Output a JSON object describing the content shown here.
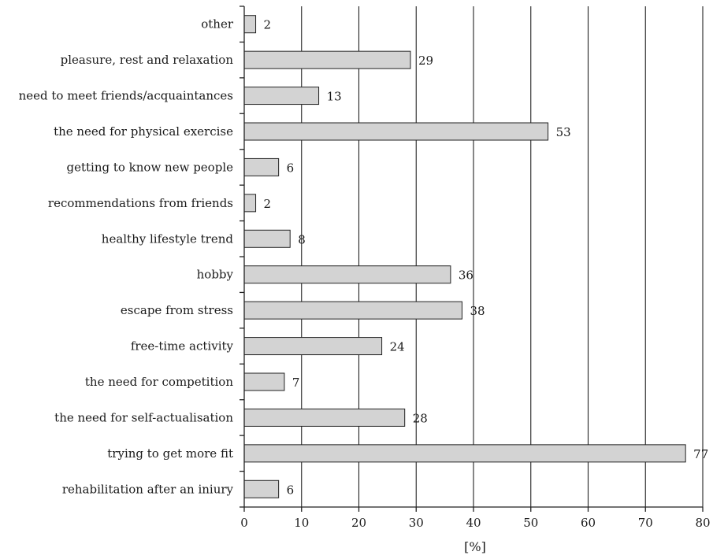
{
  "chart_data": {
    "type": "bar",
    "orientation": "horizontal",
    "categories": [
      "other",
      "pleasure, rest and relaxation",
      "need to meet friends/acquaintances",
      "the need for physical exercise",
      "getting to know new people",
      "recommendations from friends",
      "healthy lifestyle trend",
      "hobby",
      "escape from stress",
      "free-time activity",
      "the need for competition",
      "the need for self-actualisation",
      "trying to get more fit",
      "rehabilitation after an iniury"
    ],
    "values": [
      2,
      29,
      13,
      53,
      6,
      2,
      8,
      36,
      38,
      24,
      7,
      28,
      77,
      6
    ],
    "value_labels": [
      "2",
      "29",
      "13",
      "53",
      "6",
      "2",
      "8",
      "36",
      "38",
      "24",
      "7",
      "28",
      "77",
      "6"
    ],
    "xlabel": "[%]",
    "xlim": [
      0,
      80
    ],
    "xticks": [
      0,
      10,
      20,
      30,
      40,
      50,
      60,
      70,
      80
    ],
    "xtick_labels": [
      "0",
      "10",
      "20",
      "30",
      "40",
      "50",
      "60",
      "70",
      "80"
    ],
    "grid": "vertical",
    "bar_color": "#d3d3d3",
    "edge_color": "#222222"
  }
}
